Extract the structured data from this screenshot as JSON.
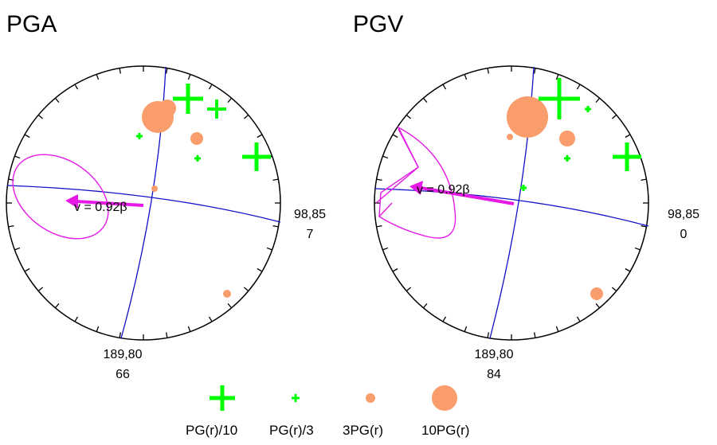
{
  "colors": {
    "circle": "#000000",
    "nodal_planes": "#1010c8",
    "plus": "#00ff00",
    "dot": "#fa9d6c",
    "ellipse": "#e619e6",
    "arrow": "#e619e6"
  },
  "panels": [
    {
      "title": "PGA",
      "velocity_label": "v = 0.92β",
      "plane1_label_top": "98,85",
      "plane1_label_bottom": "7",
      "plane2_label_top": "189,80",
      "plane2_label_bottom": "66"
    },
    {
      "title": "PGV",
      "velocity_label": "v = 0.92β",
      "plane1_label_top": "98,85",
      "plane1_label_bottom": "0",
      "plane2_label_top": "189,80",
      "plane2_label_bottom": "84"
    }
  ],
  "legend": [
    {
      "label": "PG(r)/10",
      "symbol": "plus-large"
    },
    {
      "label": "PG(r)/3",
      "symbol": "plus-small"
    },
    {
      "label": "3PG(r)",
      "symbol": "dot-small"
    },
    {
      "label": "10PG(r)",
      "symbol": "dot-large"
    }
  ]
}
